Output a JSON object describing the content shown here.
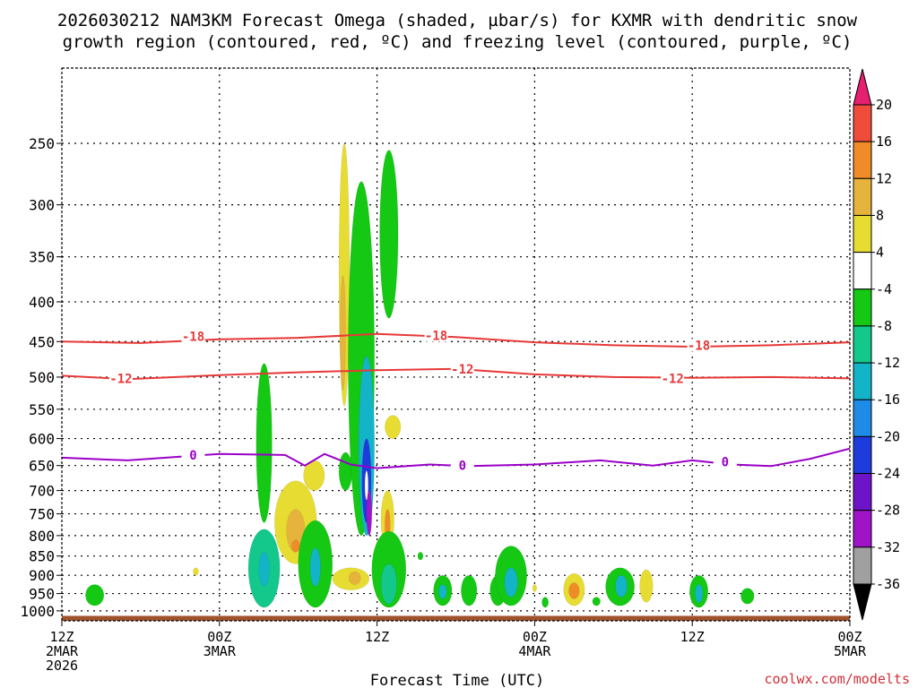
{
  "chart_data": {
    "type": "heatmap",
    "title_line1": "2026030212 NAM3KM Forecast Omega (shaded, µbar/s) for KXMR with dendritic snow",
    "title_line2": "growth region (contoured, red, ºC) and freezing level (contoured, purple, ºC)",
    "xlabel": "Forecast Time (UTC)",
    "credit": "coolwx.com/modelts",
    "y_log": true,
    "ylim": [
      1030,
      200
    ],
    "y_ticks": [
      {
        "value": 250,
        "label": "250"
      },
      {
        "value": 300,
        "label": "300"
      },
      {
        "value": 350,
        "label": "350"
      },
      {
        "value": 400,
        "label": "400"
      },
      {
        "value": 450,
        "label": "450"
      },
      {
        "value": 500,
        "label": "500"
      },
      {
        "value": 550,
        "label": "550"
      },
      {
        "value": 600,
        "label": "600"
      },
      {
        "value": 650,
        "label": "650"
      },
      {
        "value": 700,
        "label": "700"
      },
      {
        "value": 750,
        "label": "750"
      },
      {
        "value": 800,
        "label": "800"
      },
      {
        "value": 850,
        "label": "850"
      },
      {
        "value": 900,
        "label": "900"
      },
      {
        "value": 950,
        "label": "950"
      },
      {
        "value": 1000,
        "label": "1000"
      }
    ],
    "xlim": [
      0,
      60
    ],
    "x_ticks": [
      {
        "value": 0,
        "lines": [
          "12Z",
          "2MAR",
          "2026"
        ]
      },
      {
        "value": 12,
        "lines": [
          "00Z",
          "3MAR"
        ]
      },
      {
        "value": 24,
        "lines": [
          "12Z"
        ]
      },
      {
        "value": 36,
        "lines": [
          "00Z",
          "4MAR"
        ]
      },
      {
        "value": 48,
        "lines": [
          "12Z"
        ]
      },
      {
        "value": 60,
        "lines": [
          "00Z",
          "5MAR"
        ]
      }
    ],
    "colorbar": {
      "levels": [
        "20",
        "16",
        "12",
        "8",
        "4",
        "-4",
        "-8",
        "-12",
        "-16",
        "-20",
        "-24",
        "-28",
        "-32",
        "-36"
      ],
      "colors": [
        "#e61f6e",
        "#f04c3c",
        "#f08c28",
        "#e6b43c",
        "#e6dc32",
        "#ffffff",
        "#14c814",
        "#14c88c",
        "#14b4c8",
        "#1e8ce6",
        "#1e3cdc",
        "#6e14c8",
        "#a014c8",
        "#a0a0a0",
        "#000000"
      ]
    },
    "contours": [
      {
        "name": "-18",
        "color": "#e73838",
        "points": [
          [
            0,
            450
          ],
          [
            6,
            452
          ],
          [
            12,
            447
          ],
          [
            18,
            445
          ],
          [
            24,
            440
          ],
          [
            30,
            444
          ],
          [
            36,
            451
          ],
          [
            42,
            455
          ],
          [
            48,
            457
          ],
          [
            54,
            455
          ],
          [
            60,
            451
          ]
        ],
        "labels": [
          {
            "x": 10,
            "y": 443,
            "text": "-18"
          },
          {
            "x": 28.5,
            "y": 442,
            "text": "-18"
          },
          {
            "x": 48.5,
            "y": 455,
            "text": "-18"
          }
        ]
      },
      {
        "name": "-12",
        "color": "#e73838",
        "points": [
          [
            0,
            498
          ],
          [
            5,
            503
          ],
          [
            12,
            497
          ],
          [
            18,
            493
          ],
          [
            24,
            490
          ],
          [
            30,
            488
          ],
          [
            36,
            496
          ],
          [
            42,
            500
          ],
          [
            48,
            501
          ],
          [
            54,
            500
          ],
          [
            60,
            502
          ]
        ],
        "labels": [
          {
            "x": 4.5,
            "y": 502,
            "text": "-12"
          },
          {
            "x": 30.5,
            "y": 488,
            "text": "-12"
          },
          {
            "x": 46.5,
            "y": 502,
            "text": "-12"
          }
        ]
      },
      {
        "name": "0",
        "color": "#9a00c8",
        "points": [
          [
            0,
            635
          ],
          [
            5,
            640
          ],
          [
            12,
            628
          ],
          [
            17,
            630
          ],
          [
            18.5,
            650
          ],
          [
            20,
            628
          ],
          [
            22,
            648
          ],
          [
            24,
            655
          ],
          [
            28,
            648
          ],
          [
            31,
            651
          ],
          [
            36,
            648
          ],
          [
            41,
            640
          ],
          [
            45,
            650
          ],
          [
            48,
            640
          ],
          [
            51,
            648
          ],
          [
            54,
            651
          ],
          [
            57,
            637
          ],
          [
            60,
            618
          ]
        ],
        "labels": [
          {
            "x": 10,
            "y": 630,
            "text": "0"
          },
          {
            "x": 30.5,
            "y": 650,
            "text": "0"
          },
          {
            "x": 50.5,
            "y": 643,
            "text": "0"
          }
        ]
      }
    ],
    "omega_cells": [
      {
        "x": 2.5,
        "p1": 925,
        "p2": 985,
        "w": 1.4,
        "v": -6
      },
      {
        "x": 10.2,
        "p1": 880,
        "p2": 900,
        "w": 0.4,
        "v": 5
      },
      {
        "x": 15.4,
        "p1": 480,
        "p2": 770,
        "w": 1.2,
        "v": -6
      },
      {
        "x": 15.4,
        "p1": 785,
        "p2": 990,
        "w": 2.4,
        "v": -8
      },
      {
        "x": 15.4,
        "p1": 840,
        "p2": 930,
        "w": 0.8,
        "v": -12
      },
      {
        "x": 17.8,
        "p1": 680,
        "p2": 870,
        "w": 3.2,
        "v": 5
      },
      {
        "x": 17.8,
        "p1": 740,
        "p2": 840,
        "w": 1.4,
        "v": 9
      },
      {
        "x": 17.8,
        "p1": 810,
        "p2": 840,
        "w": 0.6,
        "v": 13
      },
      {
        "x": 19.2,
        "p1": 640,
        "p2": 700,
        "w": 1.6,
        "v": 5
      },
      {
        "x": 19.3,
        "p1": 765,
        "p2": 990,
        "w": 2.6,
        "v": -7
      },
      {
        "x": 19.3,
        "p1": 830,
        "p2": 930,
        "w": 0.8,
        "v": -12
      },
      {
        "x": 21.5,
        "p1": 250,
        "p2": 545,
        "w": 0.8,
        "v": 5
      },
      {
        "x": 21.4,
        "p1": 370,
        "p2": 520,
        "w": 0.4,
        "v": 9
      },
      {
        "x": 21.6,
        "p1": 625,
        "p2": 700,
        "w": 1.0,
        "v": -6
      },
      {
        "x": 22,
        "p1": 880,
        "p2": 940,
        "w": 2.8,
        "v": 5
      },
      {
        "x": 22.3,
        "p1": 890,
        "p2": 925,
        "w": 0.9,
        "v": 9
      },
      {
        "x": 22.8,
        "p1": 280,
        "p2": 800,
        "w": 2.0,
        "v": -7
      },
      {
        "x": 23.2,
        "p1": 470,
        "p2": 800,
        "w": 1.2,
        "v": -13
      },
      {
        "x": 23.2,
        "p1": 600,
        "p2": 770,
        "w": 0.7,
        "v": -22
      },
      {
        "x": 23.2,
        "p1": 660,
        "p2": 720,
        "w": 0.25,
        "v": 0
      },
      {
        "x": 23.4,
        "p1": 700,
        "p2": 800,
        "w": 0.4,
        "v": -29
      },
      {
        "x": 24.9,
        "p1": 255,
        "p2": 420,
        "w": 1.4,
        "v": -7
      },
      {
        "x": 24.8,
        "p1": 700,
        "p2": 830,
        "w": 1.0,
        "v": 5
      },
      {
        "x": 24.8,
        "p1": 740,
        "p2": 810,
        "w": 0.4,
        "v": 13
      },
      {
        "x": 25.2,
        "p1": 560,
        "p2": 600,
        "w": 1.2,
        "v": 5
      },
      {
        "x": 24.9,
        "p1": 790,
        "p2": 990,
        "w": 2.6,
        "v": -7
      },
      {
        "x": 24.9,
        "p1": 870,
        "p2": 980,
        "w": 1.2,
        "v": -10
      },
      {
        "x": 27.3,
        "p1": 840,
        "p2": 860,
        "w": 0.4,
        "v": -6
      },
      {
        "x": 29,
        "p1": 900,
        "p2": 985,
        "w": 1.4,
        "v": -7
      },
      {
        "x": 29,
        "p1": 925,
        "p2": 965,
        "w": 0.6,
        "v": -12
      },
      {
        "x": 31,
        "p1": 900,
        "p2": 985,
        "w": 1.2,
        "v": -7
      },
      {
        "x": 33.2,
        "p1": 900,
        "p2": 985,
        "w": 1.2,
        "v": -6
      },
      {
        "x": 34.2,
        "p1": 825,
        "p2": 985,
        "w": 2.4,
        "v": -7
      },
      {
        "x": 34.2,
        "p1": 880,
        "p2": 960,
        "w": 1.0,
        "v": -13
      },
      {
        "x": 36,
        "p1": 925,
        "p2": 945,
        "w": 0.3,
        "v": 5
      },
      {
        "x": 36.8,
        "p1": 960,
        "p2": 990,
        "w": 0.5,
        "v": -7
      },
      {
        "x": 39,
        "p1": 895,
        "p2": 985,
        "w": 1.6,
        "v": 5
      },
      {
        "x": 39,
        "p1": 920,
        "p2": 965,
        "w": 0.8,
        "v": 12
      },
      {
        "x": 40.7,
        "p1": 960,
        "p2": 985,
        "w": 0.6,
        "v": -7
      },
      {
        "x": 42.5,
        "p1": 880,
        "p2": 985,
        "w": 2.2,
        "v": -7
      },
      {
        "x": 42.6,
        "p1": 900,
        "p2": 960,
        "w": 0.9,
        "v": -13
      },
      {
        "x": 44.5,
        "p1": 885,
        "p2": 975,
        "w": 1.0,
        "v": 5
      },
      {
        "x": 48.5,
        "p1": 900,
        "p2": 990,
        "w": 1.4,
        "v": -7
      },
      {
        "x": 48.5,
        "p1": 925,
        "p2": 975,
        "w": 0.6,
        "v": -13
      },
      {
        "x": 52.2,
        "p1": 935,
        "p2": 980,
        "w": 1.0,
        "v": -6
      }
    ],
    "ground": {
      "top_p": 1015,
      "color": "#a0522d"
    }
  }
}
